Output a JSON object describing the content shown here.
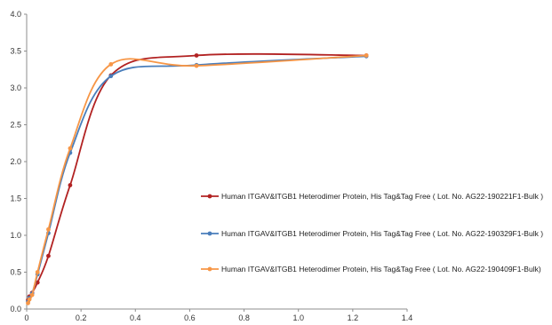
{
  "chart_data": {
    "type": "line",
    "title": "",
    "xlabel": "",
    "ylabel": "",
    "xlim": [
      0,
      1.4
    ],
    "ylim": [
      0,
      4.0
    ],
    "x_ticks": [
      "0",
      "0.2",
      "0.4",
      "0.6",
      "0.8",
      "1.0",
      "1.2",
      "1.4"
    ],
    "y_ticks": [
      "0.0",
      "0.5",
      "1.0",
      "1.5",
      "2.0",
      "2.5",
      "3.0",
      "3.5",
      "4.0"
    ],
    "grid": false,
    "legend_position": "right",
    "smooth": true,
    "series": [
      {
        "name": "Human ITGAV&ITGB1 Heterodimer Protein, His Tag&Tag Free ( Lot. No. AG22-190221F1-Bulk )",
        "color": "#b22222",
        "points": [
          [
            0.005,
            0.12
          ],
          [
            0.01,
            0.17
          ],
          [
            0.02,
            0.22
          ],
          [
            0.04,
            0.36
          ],
          [
            0.08,
            0.72
          ],
          [
            0.16,
            1.68
          ],
          [
            0.31,
            3.17
          ],
          [
            0.625,
            3.44
          ],
          [
            1.25,
            3.44
          ]
        ]
      },
      {
        "name": "Human ITGAV&ITGB1 Heterodimer Protein, His Tag&Tag Free ( Lot. No. AG22-190329F1-Bulk )",
        "color": "#4a7ebb",
        "points": [
          [
            0.005,
            0.1
          ],
          [
            0.01,
            0.15
          ],
          [
            0.02,
            0.21
          ],
          [
            0.04,
            0.47
          ],
          [
            0.08,
            1.03
          ],
          [
            0.16,
            2.12
          ],
          [
            0.31,
            3.16
          ],
          [
            0.625,
            3.31
          ],
          [
            1.25,
            3.43
          ]
        ]
      },
      {
        "name": "Human ITGAV&ITGB1 Heterodimer Protein, His Tag&Tag Free ( Lot. No. AG22-190409F1-Bulk)",
        "color": "#f79646",
        "points": [
          [
            0.005,
            0.08
          ],
          [
            0.01,
            0.13
          ],
          [
            0.02,
            0.19
          ],
          [
            0.04,
            0.5
          ],
          [
            0.08,
            1.08
          ],
          [
            0.16,
            2.18
          ],
          [
            0.31,
            3.32
          ],
          [
            0.625,
            3.3
          ],
          [
            1.25,
            3.44
          ]
        ]
      }
    ]
  }
}
